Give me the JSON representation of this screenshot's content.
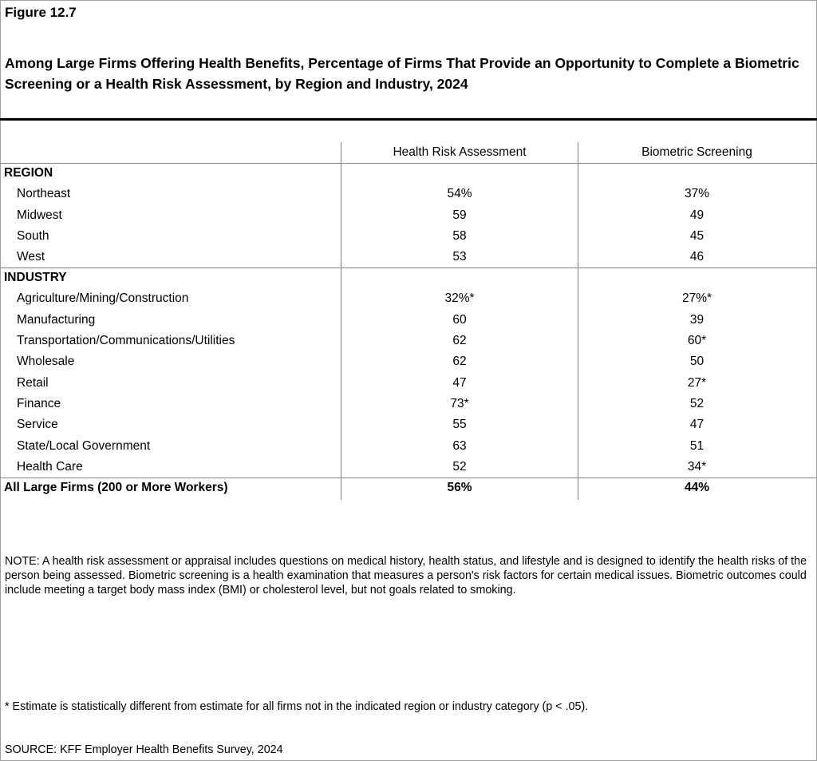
{
  "figure_label": "Figure 12.7",
  "chart_data": {
    "type": "table",
    "title": "Among Large Firms Offering Health Benefits, Percentage of Firms That Provide an Opportunity to Complete a Biometric Screening or a Health Risk Assessment, by Region and Industry, 2024",
    "columns": [
      "Health Risk Assessment",
      "Biometric Screening"
    ],
    "sections": [
      {
        "label": "REGION",
        "rows": [
          {
            "label": "Northeast",
            "values": [
              "54%",
              "37%"
            ]
          },
          {
            "label": "Midwest",
            "values": [
              "59",
              "49"
            ]
          },
          {
            "label": "South",
            "values": [
              "58",
              "45"
            ]
          },
          {
            "label": "West",
            "values": [
              "53",
              "46"
            ]
          }
        ]
      },
      {
        "label": "INDUSTRY",
        "rows": [
          {
            "label": "Agriculture/Mining/Construction",
            "values": [
              "32%*",
              "27%*"
            ]
          },
          {
            "label": "Manufacturing",
            "values": [
              "60",
              "39"
            ]
          },
          {
            "label": "Transportation/Communications/Utilities",
            "values": [
              "62",
              "60*"
            ]
          },
          {
            "label": "Wholesale",
            "values": [
              "62",
              "50"
            ]
          },
          {
            "label": "Retail",
            "values": [
              "47",
              "27*"
            ]
          },
          {
            "label": "Finance",
            "values": [
              "73*",
              "52"
            ]
          },
          {
            "label": "Service",
            "values": [
              "55",
              "47"
            ]
          },
          {
            "label": "State/Local Government",
            "values": [
              "63",
              "51"
            ]
          },
          {
            "label": "Health Care",
            "values": [
              "52",
              "34*"
            ]
          }
        ]
      }
    ],
    "total": {
      "label": "All Large Firms (200 or More Workers)",
      "values": [
        "56%",
        "44%"
      ]
    }
  },
  "note": "NOTE: A health risk assessment or appraisal includes questions on medical history, health status, and lifestyle and is designed to identify the health risks of the person being assessed.  Biometric screening is a health examination that measures a person's risk factors for certain medical issues. Biometric outcomes could include meeting a target body mass index (BMI) or cholesterol level, but not goals related to smoking.",
  "footnote": " * Estimate is statistically different from estimate for all firms not in the indicated region or industry category (p < .05).",
  "source": "SOURCE: KFF Employer Health Benefits Survey, 2024"
}
